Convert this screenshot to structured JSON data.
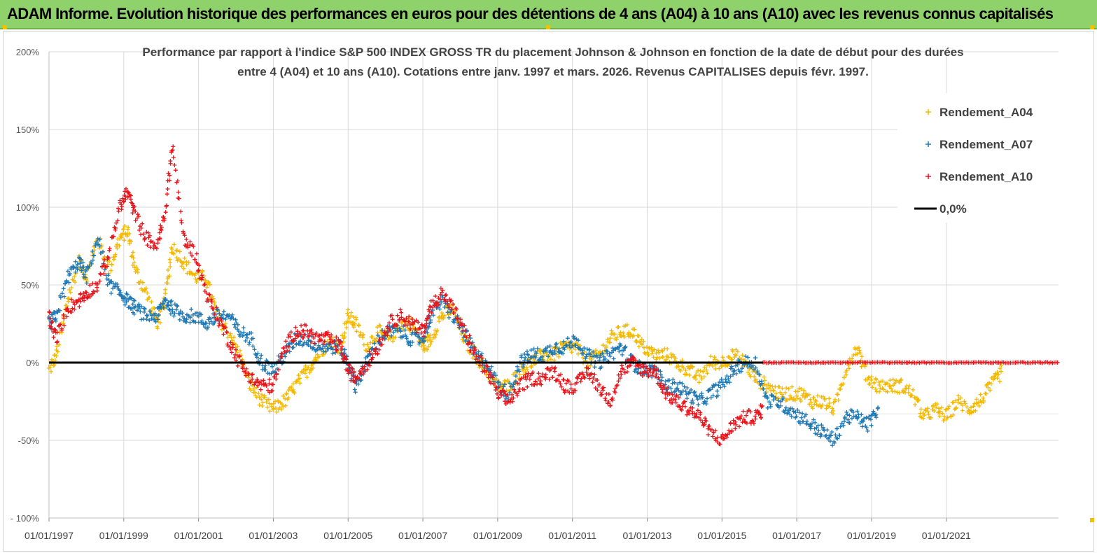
{
  "banner": {
    "title": "ADAM Informe. Evolution historique des performances en euros pour des détentions de 4 ans (A04) à 10 ans (A10) avec les revenus connus capitalisés"
  },
  "colors": {
    "banner_bg": "#8fd16a",
    "a04": "#f5b800",
    "a07": "#1f78b4",
    "a10": "#e8141b",
    "zero": "#000000"
  },
  "chart_data": {
    "type": "scatter",
    "title_line1": "Performance par rapport à l'indice S&P 500 INDEX GROSS TR  du placement Johnson & Johnson en fonction de la date de début pour des durées",
    "title_line2": "entre 4 (A04) et 10 ans (A10). Cotations entre janv. 1997 et mars. 2026. Revenus CAPITALISES depuis févr. 1997.",
    "ylim": [
      -100,
      200
    ],
    "xlim": [
      1997.0,
      2024.0
    ],
    "y_ticks": [
      200,
      150,
      100,
      50,
      0,
      -50,
      -100
    ],
    "y_tick_labels": [
      "200%",
      "150%",
      "100%",
      "50%",
      "0%",
      "-50%",
      "- 100%"
    ],
    "x_ticks": [
      1997,
      1999,
      2001,
      2003,
      2005,
      2007,
      2009,
      2011,
      2013,
      2015,
      2017,
      2019,
      2021
    ],
    "x_tick_labels": [
      "01/01/1997",
      "01/01/1999",
      "01/01/2001",
      "01/01/2003",
      "01/01/2005",
      "01/01/2007",
      "01/01/2009",
      "01/01/2011",
      "01/01/2013",
      "01/01/2015",
      "01/01/2017",
      "01/01/2019",
      "01/01/2021"
    ],
    "legend": {
      "position": "top-right",
      "entries": [
        "Rendement_A04",
        "Rendement_A07",
        "Rendement_A10",
        "0,0%"
      ]
    },
    "series": [
      {
        "name": "Rendement_A04",
        "key": "a04",
        "x": [
          1997.0,
          1997.2,
          1997.5,
          1997.8,
          1998.0,
          1998.3,
          1998.6,
          1998.9,
          1999.1,
          1999.3,
          1999.6,
          1999.9,
          2000.1,
          2000.3,
          2000.6,
          2000.9,
          2001.2,
          2001.5,
          2001.8,
          2002.1,
          2002.4,
          2002.7,
          2003.0,
          2003.3,
          2003.6,
          2003.9,
          2004.2,
          2004.5,
          2004.8,
          2005.0,
          2005.2,
          2005.5,
          2005.8,
          2006.1,
          2006.4,
          2006.7,
          2007.0,
          2007.2,
          2007.5,
          2007.8,
          2008.1,
          2008.4,
          2008.7,
          2009.0,
          2009.3,
          2009.6,
          2009.9,
          2010.2,
          2010.5,
          2010.8,
          2011.1,
          2011.4,
          2011.7,
          2012.0,
          2012.3,
          2012.6,
          2012.9,
          2013.2,
          2013.5,
          2013.8,
          2014.1,
          2014.4,
          2014.7,
          2015.0,
          2015.3,
          2015.6,
          2015.9,
          2016.2,
          2016.5,
          2016.8,
          2017.1,
          2017.4,
          2017.7,
          2018.0,
          2018.3,
          2018.6,
          2018.9,
          2019.2,
          2019.5,
          2019.8,
          2020.1,
          2020.4,
          2020.7,
          2021.0,
          2021.3,
          2021.6,
          2021.9,
          2022.2,
          2022.5
        ],
        "y": [
          -5,
          5,
          40,
          65,
          55,
          80,
          60,
          80,
          85,
          60,
          45,
          25,
          40,
          75,
          65,
          55,
          55,
          30,
          20,
          5,
          -15,
          -25,
          -30,
          -25,
          -15,
          -5,
          5,
          15,
          10,
          30,
          25,
          10,
          20,
          15,
          25,
          25,
          10,
          15,
          30,
          35,
          15,
          5,
          -5,
          -15,
          -15,
          -5,
          0,
          5,
          5,
          10,
          10,
          0,
          5,
          15,
          20,
          20,
          10,
          5,
          5,
          0,
          -5,
          -10,
          0,
          0,
          5,
          0,
          -10,
          -15,
          -20,
          -20,
          -20,
          -25,
          -25,
          -30,
          -5,
          10,
          -10,
          -15,
          -15,
          -15,
          -20,
          -35,
          -30,
          -35,
          -25,
          -30,
          -25,
          -15,
          -5
        ]
      },
      {
        "name": "Rendement_A07",
        "key": "a07",
        "x": [
          1997.0,
          1997.2,
          1997.5,
          1997.8,
          1998.0,
          1998.3,
          1998.6,
          1998.9,
          1999.1,
          1999.3,
          1999.6,
          1999.9,
          2000.1,
          2000.3,
          2000.6,
          2000.9,
          2001.2,
          2001.5,
          2001.8,
          2002.1,
          2002.4,
          2002.7,
          2003.0,
          2003.3,
          2003.6,
          2003.9,
          2004.2,
          2004.5,
          2004.8,
          2005.0,
          2005.2,
          2005.5,
          2005.8,
          2006.1,
          2006.4,
          2006.7,
          2007.0,
          2007.2,
          2007.5,
          2007.8,
          2008.1,
          2008.4,
          2008.7,
          2009.0,
          2009.3,
          2009.6,
          2009.9,
          2010.2,
          2010.5,
          2010.8,
          2011.1,
          2011.4,
          2011.7,
          2012.0,
          2012.3,
          2012.6,
          2012.9,
          2013.2,
          2013.5,
          2013.8,
          2014.1,
          2014.4,
          2014.7,
          2015.0,
          2015.3,
          2015.6,
          2015.9,
          2016.2,
          2016.5,
          2016.8,
          2017.1,
          2017.4,
          2017.7,
          2018.0,
          2018.3,
          2018.6,
          2018.9,
          2019.2
        ],
        "y": [
          25,
          30,
          55,
          65,
          55,
          80,
          50,
          45,
          40,
          35,
          30,
          30,
          40,
          35,
          30,
          30,
          25,
          30,
          30,
          20,
          15,
          0,
          -5,
          5,
          15,
          15,
          10,
          10,
          10,
          0,
          -15,
          0,
          15,
          20,
          20,
          15,
          15,
          30,
          40,
          30,
          20,
          5,
          0,
          -15,
          -20,
          0,
          5,
          5,
          10,
          10,
          15,
          5,
          0,
          5,
          10,
          0,
          -5,
          -5,
          -15,
          -15,
          -20,
          -25,
          -20,
          -15,
          -5,
          0,
          0,
          -25,
          -25,
          -30,
          -35,
          -40,
          -45,
          -50,
          -35,
          -35,
          -40,
          -30
        ]
      },
      {
        "name": "Rendement_A10",
        "key": "a10",
        "x": [
          1997.0,
          1997.2,
          1997.5,
          1997.8,
          1998.0,
          1998.3,
          1998.6,
          1998.9,
          1999.1,
          1999.3,
          1999.6,
          1999.9,
          2000.1,
          2000.3,
          2000.6,
          2000.9,
          2001.2,
          2001.5,
          2001.8,
          2002.1,
          2002.4,
          2002.7,
          2003.0,
          2003.3,
          2003.6,
          2003.9,
          2004.2,
          2004.5,
          2004.8,
          2005.0,
          2005.2,
          2005.5,
          2005.8,
          2006.1,
          2006.4,
          2006.7,
          2007.0,
          2007.2,
          2007.5,
          2007.8,
          2008.1,
          2008.4,
          2008.7,
          2009.0,
          2009.3,
          2009.6,
          2009.9,
          2010.2,
          2010.5,
          2010.8,
          2011.1,
          2011.4,
          2011.7,
          2012.0,
          2012.3,
          2012.6,
          2012.9,
          2013.2,
          2013.5,
          2013.8,
          2014.1,
          2014.4,
          2014.7,
          2015.0,
          2015.3,
          2015.6,
          2015.9,
          2016.1
        ],
        "y": [
          30,
          15,
          35,
          40,
          45,
          50,
          70,
          100,
          110,
          95,
          80,
          75,
          95,
          140,
          80,
          70,
          45,
          30,
          15,
          0,
          -10,
          -15,
          -15,
          10,
          20,
          20,
          15,
          15,
          10,
          -5,
          -10,
          0,
          10,
          25,
          30,
          25,
          20,
          35,
          45,
          35,
          20,
          5,
          -5,
          -20,
          -25,
          -15,
          -10,
          -10,
          -5,
          -15,
          -15,
          -5,
          -15,
          -25,
          -5,
          0,
          -5,
          -5,
          -20,
          -25,
          -30,
          -35,
          -45,
          -50,
          -40,
          -35,
          -35,
          -30
        ]
      }
    ],
    "flat_tail": {
      "name": "Rendement_A10",
      "x_start": 2016.1,
      "x_end": 2024.0,
      "value": 0
    },
    "reference_line": {
      "name": "0,0%",
      "value": 0
    }
  }
}
